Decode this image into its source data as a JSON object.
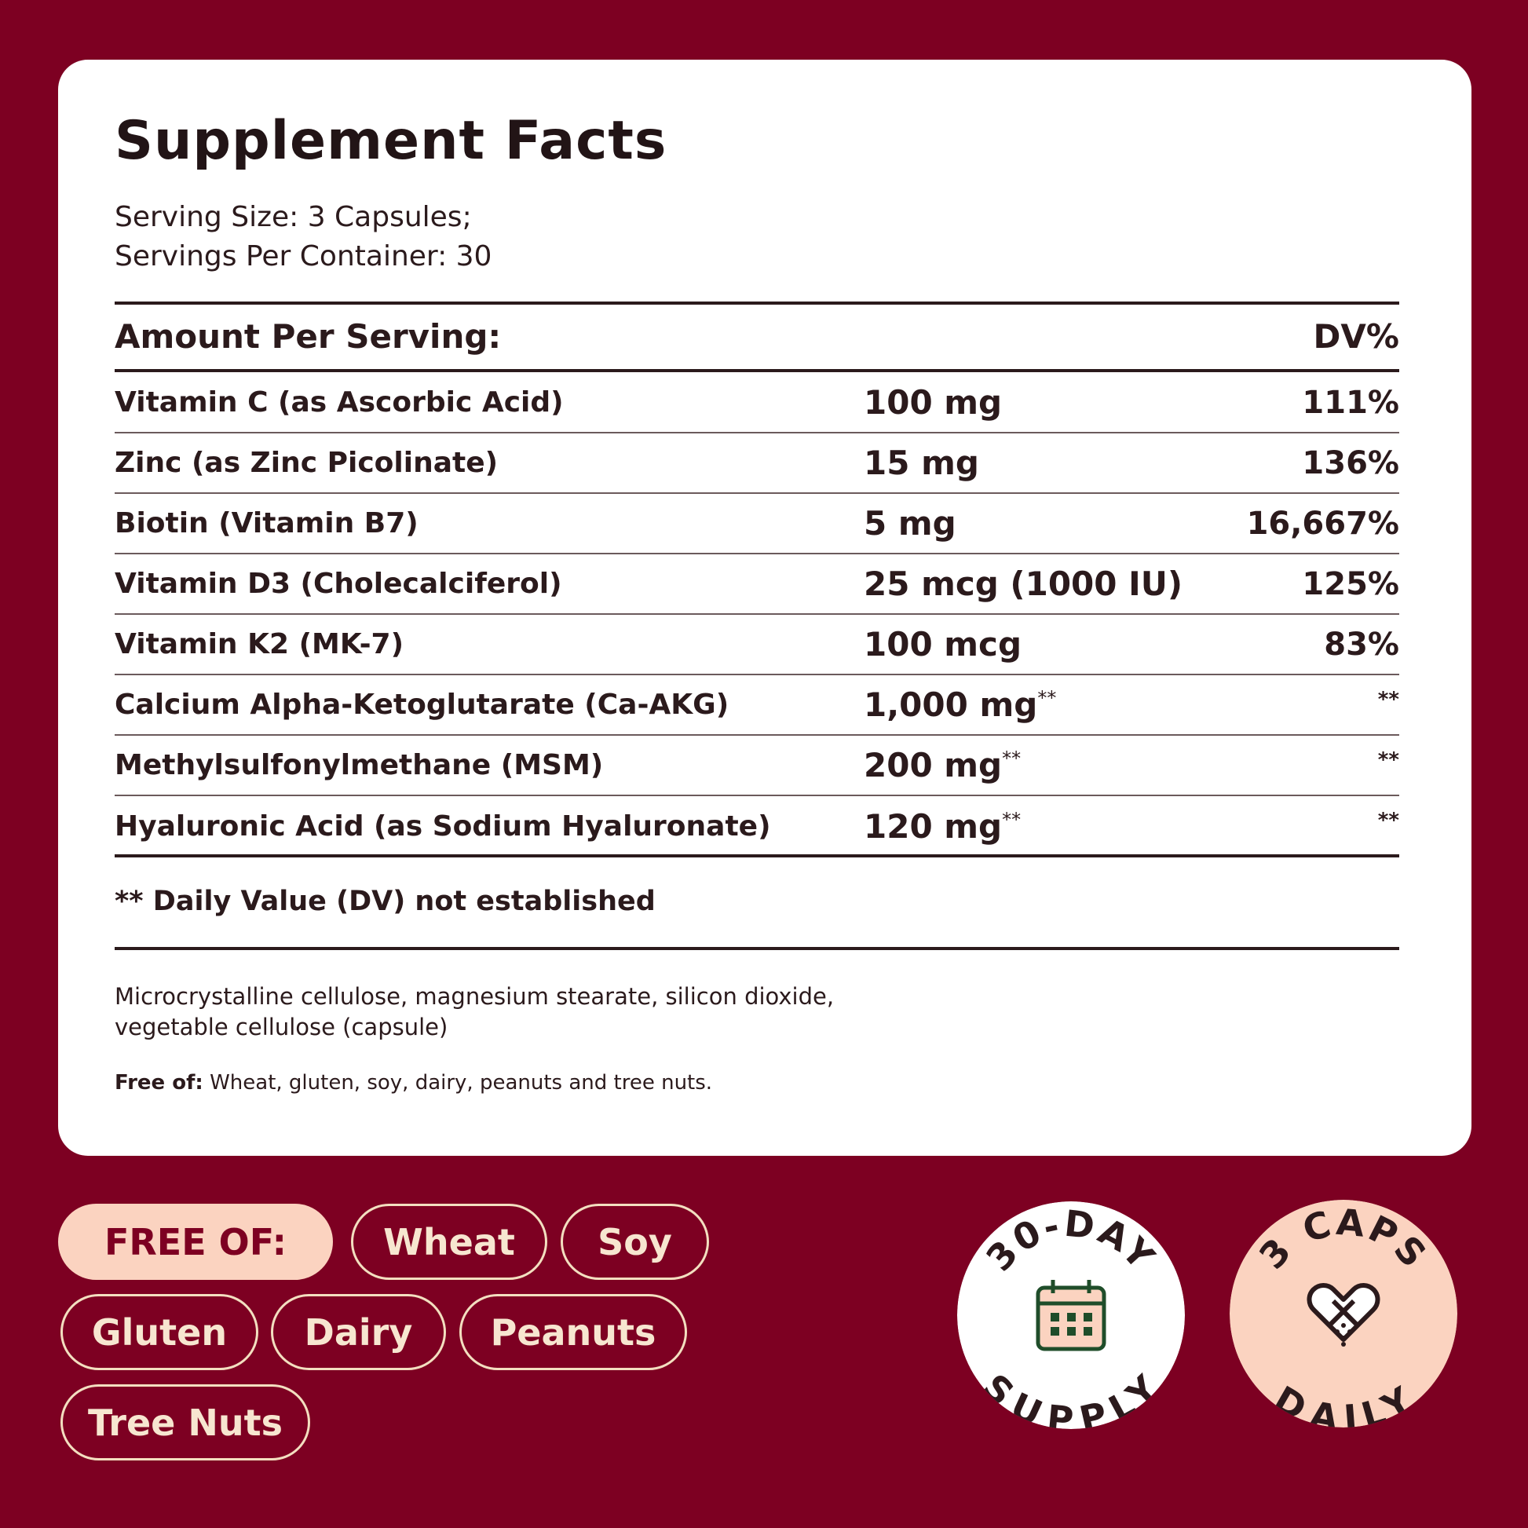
{
  "title": "Supplement Facts",
  "serving_size": "Serving Size: 3 Capsules;",
  "servings_per_container": "Servings Per Container: 30",
  "header": {
    "amount": "Amount Per Serving:",
    "dv": "DV%"
  },
  "rows": [
    {
      "name": "Vitamin C (as Ascorbic Acid)",
      "amount": "100 mg",
      "sup": "",
      "dv": "111%"
    },
    {
      "name": "Zinc (as Zinc Picolinate)",
      "amount": "15 mg",
      "sup": "",
      "dv": "136%"
    },
    {
      "name": "Biotin (Vitamin B7)",
      "amount": "5 mg",
      "sup": "",
      "dv": "16,667%"
    },
    {
      "name": "Vitamin D3 (Cholecalciferol)",
      "amount": "25 mcg (1000 IU)",
      "sup": "",
      "dv": "125%"
    },
    {
      "name": "Vitamin K2 (MK-7)",
      "amount": "100 mcg",
      "sup": "",
      "dv": "83%"
    },
    {
      "name": "Calcium Alpha-Ketoglutarate (Ca-AKG)",
      "amount": "1,000 mg",
      "sup": "**",
      "dv": "**"
    },
    {
      "name": "Methylsulfonylmethane (MSM)",
      "amount": "200 mg",
      "sup": "**",
      "dv": "**"
    },
    {
      "name": "Hyaluronic Acid (as Sodium Hyaluronate)",
      "amount": "120 mg",
      "sup": "**",
      "dv": "**"
    }
  ],
  "footnote": "** Daily Value (DV) not established",
  "ingredients": "Microcrystalline cellulose, magnesium stearate, silicon dioxide, vegetable cellulose (capsule)",
  "free_of_label": "Free of:",
  "free_of_text": " Wheat, gluten, soy, dairy, peanuts and tree nuts.",
  "pills": {
    "main": "FREE OF:",
    "wheat": "Wheat",
    "soy": "Soy",
    "gluten": "Gluten",
    "dairy": "Dairy",
    "peanuts": "Peanuts",
    "tree_nuts": "Tree Nuts"
  },
  "badges": {
    "supply_top": "30-DAY",
    "supply_bottom": "SUPPLY",
    "supply_icon": "calendar-icon",
    "caps_top": "3 CAPS",
    "caps_bottom": "DAILY",
    "caps_icon": "capsule-heart-icon"
  },
  "colors": {
    "background": "#7d0022",
    "card": "#ffffff",
    "peach": "#fbd3c0",
    "pill_border": "#f3dfc0",
    "calendar_green": "#1f4d2a"
  }
}
